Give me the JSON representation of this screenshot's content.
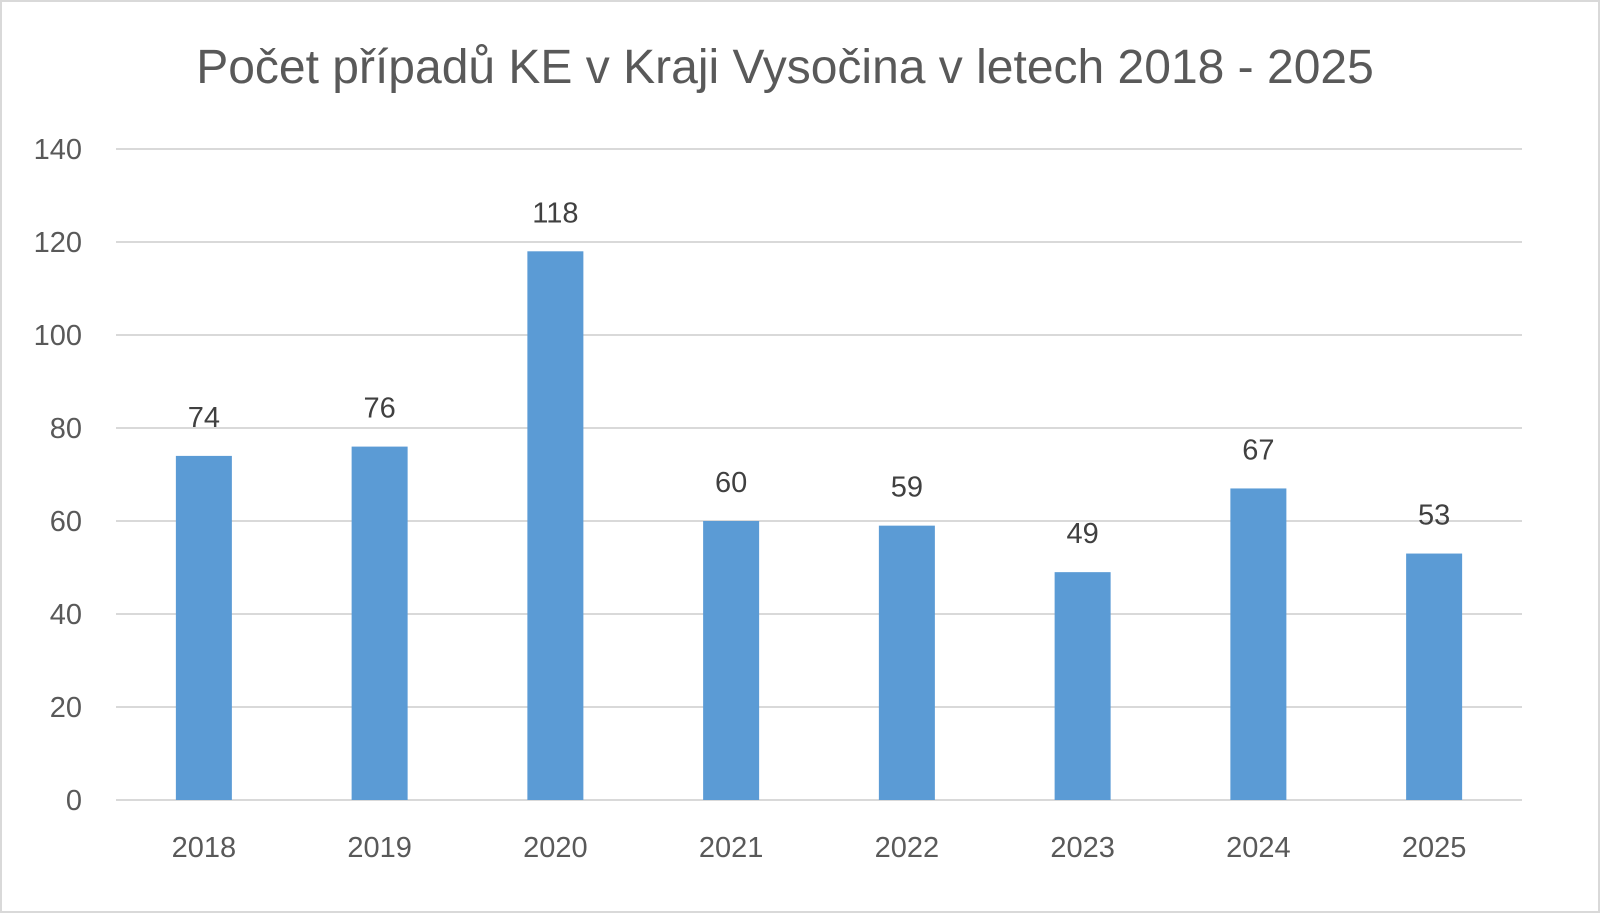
{
  "chart_data": {
    "type": "bar",
    "title": "Počet případů KE v Kraji Vysočina v letech 2018 - 2025",
    "categories": [
      "2018",
      "2019",
      "2020",
      "2021",
      "2022",
      "2023",
      "2024",
      "2025"
    ],
    "values": [
      74,
      76,
      118,
      60,
      59,
      49,
      67,
      53
    ],
    "xlabel": "",
    "ylabel": "",
    "ylim": [
      0,
      140
    ],
    "yticks": [
      0,
      20,
      40,
      60,
      80,
      100,
      120,
      140
    ],
    "grid": true,
    "legend": null,
    "data_labels": true,
    "bar_color": "#5b9bd5",
    "grid_color": "#d9d9d9",
    "text_color": "#595959"
  }
}
